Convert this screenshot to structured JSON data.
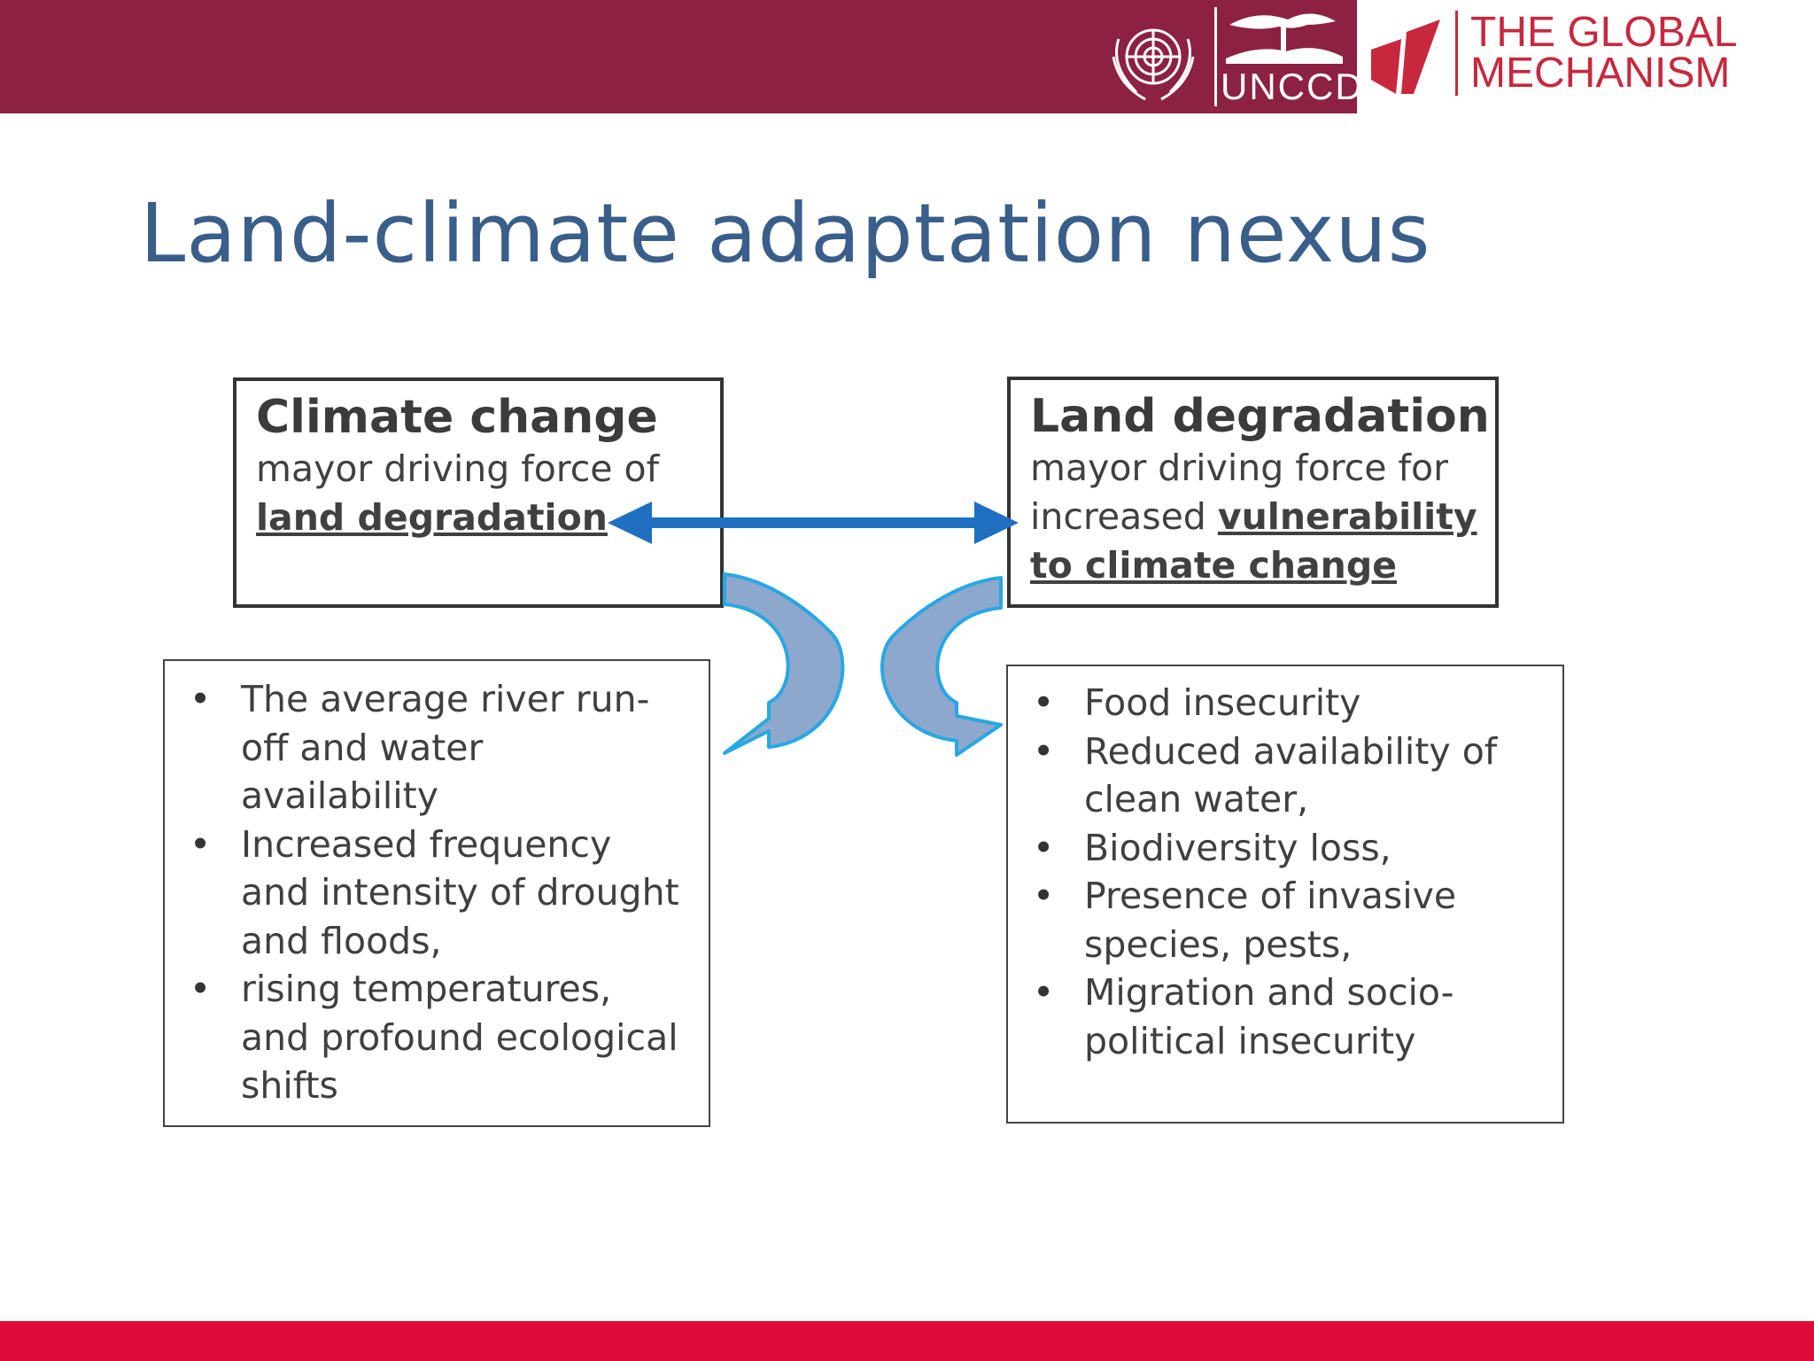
{
  "header": {
    "un_logo_label": "UNCCD",
    "partner_logo_line1": "THE GLOBAL",
    "partner_logo_line2": "MECHANISM"
  },
  "title": "Land-climate adaptation nexus",
  "climate_box": {
    "heading": "Climate change",
    "line1": "mayor driving force of",
    "emphasis": "land degradation"
  },
  "land_box": {
    "heading": "Land degradation",
    "line1": "mayor driving force for",
    "line2_prefix": "increased ",
    "emphasis_part1": "vulnerability",
    "emphasis_part2": "to climate change"
  },
  "climate_effects": [
    "The average river run-off and water availability",
    "Increased frequency and intensity of drought and floods,",
    "rising temperatures, and profound ecological shifts"
  ],
  "land_effects": [
    "Food insecurity",
    "Reduced availability of clean water,",
    "Biodiversity loss,",
    "Presence of invasive species, pests,",
    "Migration and socio-political insecurity"
  ],
  "colors": {
    "header_bar": "#8c2141",
    "bottom_bar": "#dc0b3a",
    "title": "#3a5e8a",
    "arrow": "#1f6fc0",
    "curved_arrow_fill": "#8ea7cd",
    "curved_arrow_outline": "#27a8e2",
    "partner_logo": "#c7283e"
  },
  "icons": {
    "emblem": "un-emblem-icon",
    "tree": "uncc-tree-icon",
    "partner": "global-mechanism-mark-icon"
  }
}
